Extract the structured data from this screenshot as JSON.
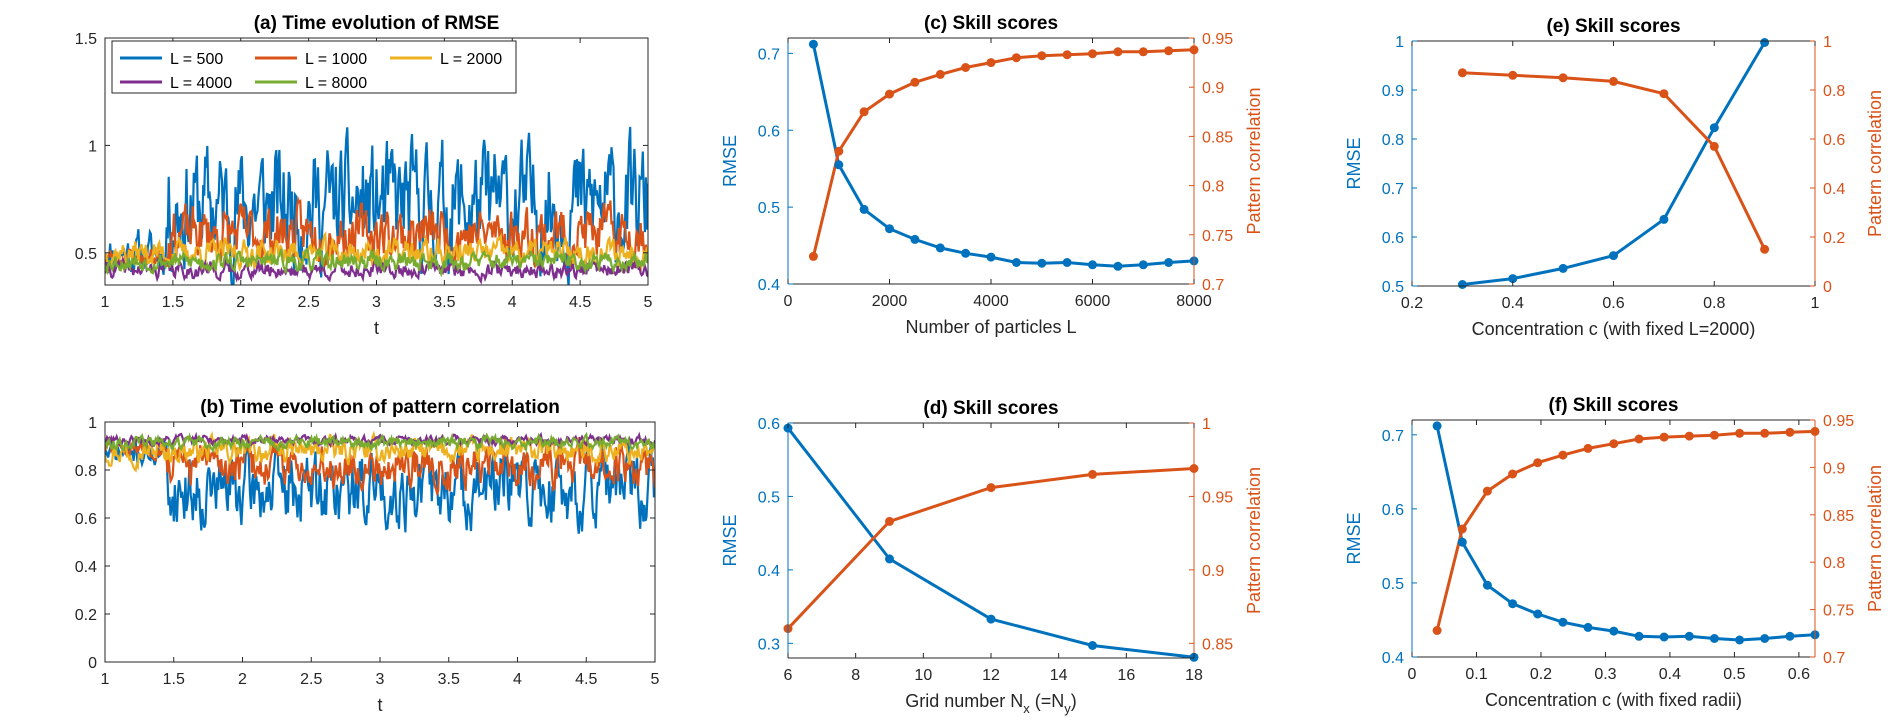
{
  "figure": {
    "name": "skill score figure"
  },
  "colors": {
    "blue": "#0072BD",
    "orange": "#D95319",
    "yellow": "#EDB120",
    "purple": "#7E2F8E",
    "green": "#77AC30",
    "axis": "#262626"
  },
  "chart_data": [
    {
      "id": "a",
      "type": "line",
      "title": "(a) Time evolution of RMSE",
      "xlabel": "t",
      "ylabel": "",
      "xlim": [
        1,
        5
      ],
      "ylim": [
        0.35,
        1.5
      ],
      "xticks": [
        1,
        1.5,
        2,
        2.5,
        3,
        3.5,
        4,
        4.5,
        5
      ],
      "xtick_labels": [
        "1",
        "1.5",
        "2",
        "2.5",
        "3",
        "3.5",
        "4",
        "4.5",
        "5"
      ],
      "yticks": [
        0.5,
        1,
        1.5
      ],
      "ytick_labels": [
        "0.5",
        "1",
        "1.5"
      ],
      "legend": {
        "position": "top",
        "entries": [
          {
            "label": "L = 500",
            "color": "#0072BD"
          },
          {
            "label": "L = 1000",
            "color": "#D95319"
          },
          {
            "label": "L = 2000",
            "color": "#EDB120"
          },
          {
            "label": "L = 4000",
            "color": "#7E2F8E"
          },
          {
            "label": "L = 8000",
            "color": "#77AC30"
          }
        ]
      },
      "series": [
        {
          "name": "L = 500",
          "color": "#0072BD",
          "mean": 0.72,
          "amp": 0.22,
          "seed": 11,
          "dip_start": 1.45,
          "mean_early": 0.5
        },
        {
          "name": "L = 1000",
          "color": "#D95319",
          "mean": 0.59,
          "amp": 0.1,
          "seed": 23,
          "dip_start": 1.45,
          "mean_early": 0.48
        },
        {
          "name": "L = 2000",
          "color": "#EDB120",
          "mean": 0.5,
          "amp": 0.05,
          "seed": 37
        },
        {
          "name": "L = 4000",
          "color": "#7E2F8E",
          "mean": 0.42,
          "amp": 0.03,
          "seed": 41
        },
        {
          "name": "L = 8000",
          "color": "#77AC30",
          "mean": 0.46,
          "amp": 0.035,
          "seed": 53
        }
      ]
    },
    {
      "id": "b",
      "type": "line",
      "title": "(b) Time evolution of pattern correlation",
      "xlabel": "t",
      "ylabel": "",
      "xlim": [
        1,
        5
      ],
      "ylim": [
        0,
        1
      ],
      "xticks": [
        1,
        1.5,
        2,
        2.5,
        3,
        3.5,
        4,
        4.5,
        5
      ],
      "xtick_labels": [
        "1",
        "1.5",
        "2",
        "2.5",
        "3",
        "3.5",
        "4",
        "4.5",
        "5"
      ],
      "yticks": [
        0,
        0.2,
        0.4,
        0.6,
        0.8,
        1
      ],
      "ytick_labels": [
        "0",
        "0.2",
        "0.4",
        "0.6",
        "0.8",
        "1"
      ],
      "series": [
        {
          "name": "L = 500",
          "color": "#0072BD",
          "mean": 0.72,
          "amp": 0.12,
          "seed": 71,
          "dip_start": 1.45,
          "mean_early": 0.87
        },
        {
          "name": "L = 1000",
          "color": "#D95319",
          "mean": 0.82,
          "amp": 0.07,
          "seed": 83,
          "dip_start": 1.45,
          "mean_early": 0.89
        },
        {
          "name": "L = 2000",
          "color": "#EDB120",
          "mean": 0.88,
          "amp": 0.04,
          "seed": 97
        },
        {
          "name": "L = 4000",
          "color": "#7E2F8E",
          "mean": 0.925,
          "amp": 0.015,
          "seed": 101
        },
        {
          "name": "L = 8000",
          "color": "#77AC30",
          "mean": 0.915,
          "amp": 0.02,
          "seed": 113
        }
      ]
    },
    {
      "id": "c",
      "type": "line",
      "title": "(c) Skill scores",
      "xlabel": "Number of particles L",
      "ylabel": "RMSE",
      "ylabel_right": "Pattern correlation",
      "xlim": [
        0,
        8000
      ],
      "ylim": [
        0.4,
        0.72
      ],
      "ylim_right": [
        0.7,
        0.95
      ],
      "xticks": [
        0,
        2000,
        4000,
        6000,
        8000
      ],
      "xtick_labels": [
        "0",
        "2000",
        "4000",
        "6000",
        "8000"
      ],
      "yticks": [
        0.4,
        0.5,
        0.6,
        0.7
      ],
      "ytick_labels": [
        "0.4",
        "0.5",
        "0.6",
        "0.7"
      ],
      "yticks_right": [
        0.7,
        0.75,
        0.8,
        0.85,
        0.9,
        0.95
      ],
      "ytick_labels_right": [
        "0.7",
        "0.75",
        "0.8",
        "0.85",
        "0.9",
        "0.95"
      ],
      "x": [
        500,
        1000,
        1500,
        2000,
        2500,
        3000,
        3500,
        4000,
        4500,
        5000,
        5500,
        6000,
        6500,
        7000,
        7500,
        8000
      ],
      "series": [
        {
          "name": "RMSE",
          "axis": "left",
          "color": "#0072BD",
          "values": [
            0.712,
            0.555,
            0.497,
            0.472,
            0.458,
            0.447,
            0.44,
            0.435,
            0.428,
            0.427,
            0.428,
            0.425,
            0.423,
            0.425,
            0.428,
            0.43
          ]
        },
        {
          "name": "Pattern correlation",
          "axis": "right",
          "color": "#D95319",
          "values": [
            0.728,
            0.835,
            0.875,
            0.893,
            0.905,
            0.913,
            0.92,
            0.925,
            0.93,
            0.932,
            0.933,
            0.934,
            0.936,
            0.936,
            0.937,
            0.938
          ]
        }
      ]
    },
    {
      "id": "d",
      "type": "line",
      "title": "(d) Skill scores",
      "xlabel": "Grid number N",
      "xlabel_sub": "x",
      "xlabel_mid": " (=N",
      "xlabel_sub2": "y",
      "xlabel_end": ")",
      "ylabel": "RMSE",
      "ylabel_right": "Pattern correlation",
      "xlim": [
        6,
        18
      ],
      "ylim": [
        0.28,
        0.6
      ],
      "ylim_right": [
        0.84,
        1.0
      ],
      "xticks": [
        6,
        8,
        10,
        12,
        14,
        16,
        18
      ],
      "xtick_labels": [
        "6",
        "8",
        "10",
        "12",
        "14",
        "16",
        "18"
      ],
      "yticks": [
        0.3,
        0.4,
        0.5,
        0.6
      ],
      "ytick_labels": [
        "0.3",
        "0.4",
        "0.5",
        "0.6"
      ],
      "yticks_right": [
        0.85,
        0.9,
        0.95,
        1.0
      ],
      "ytick_labels_right": [
        "0.85",
        "0.9",
        "0.95",
        "1"
      ],
      "x": [
        6,
        9,
        12,
        15,
        18
      ],
      "series": [
        {
          "name": "RMSE",
          "axis": "left",
          "color": "#0072BD",
          "values": [
            0.593,
            0.415,
            0.333,
            0.297,
            0.281
          ]
        },
        {
          "name": "Pattern correlation",
          "axis": "right",
          "color": "#D95319",
          "values": [
            0.86,
            0.933,
            0.956,
            0.965,
            0.969
          ]
        }
      ]
    },
    {
      "id": "e",
      "type": "line",
      "title": "(e) Skill scores",
      "xlabel": "Concentration c (with fixed L=2000)",
      "ylabel": "RMSE",
      "ylabel_right": "Pattern correlation",
      "xlim": [
        0.2,
        1.0
      ],
      "ylim": [
        0.5,
        1.0
      ],
      "ylim_right": [
        0,
        1.0
      ],
      "xticks": [
        0.2,
        0.4,
        0.6,
        0.8,
        1.0
      ],
      "xtick_labels": [
        "0.2",
        "0.4",
        "0.6",
        "0.8",
        "1"
      ],
      "yticks": [
        0.5,
        0.6,
        0.7,
        0.8,
        0.9,
        1.0
      ],
      "ytick_labels": [
        "0.5",
        "0.6",
        "0.7",
        "0.8",
        "0.9",
        "1"
      ],
      "yticks_right": [
        0,
        0.2,
        0.4,
        0.6,
        0.8,
        1.0
      ],
      "ytick_labels_right": [
        "0",
        "0.2",
        "0.4",
        "0.6",
        "0.8",
        "1"
      ],
      "x": [
        0.3,
        0.4,
        0.5,
        0.6,
        0.7,
        0.8,
        0.9
      ],
      "series": [
        {
          "name": "RMSE",
          "axis": "left",
          "color": "#0072BD",
          "values": [
            0.503,
            0.515,
            0.536,
            0.562,
            0.636,
            0.823,
            0.997
          ]
        },
        {
          "name": "Pattern correlation",
          "axis": "right",
          "color": "#D95319",
          "values": [
            0.87,
            0.86,
            0.85,
            0.835,
            0.785,
            0.57,
            0.15
          ]
        }
      ]
    },
    {
      "id": "f",
      "type": "line",
      "title": "(f) Skill scores",
      "xlabel": "Concentration c (with fixed radii)",
      "ylabel": "RMSE",
      "ylabel_right": "Pattern correlation",
      "xlim": [
        0,
        0.625
      ],
      "ylim": [
        0.4,
        0.72
      ],
      "ylim_right": [
        0.7,
        0.95
      ],
      "xticks": [
        0,
        0.1,
        0.2,
        0.3,
        0.4,
        0.5,
        0.6
      ],
      "xtick_labels": [
        "0",
        "0.1",
        "0.2",
        "0.3",
        "0.4",
        "0.5",
        "0.6"
      ],
      "yticks": [
        0.4,
        0.5,
        0.6,
        0.7
      ],
      "ytick_labels": [
        "0.4",
        "0.5",
        "0.6",
        "0.7"
      ],
      "yticks_right": [
        0.7,
        0.75,
        0.8,
        0.85,
        0.9,
        0.95
      ],
      "ytick_labels_right": [
        "0.7",
        "0.75",
        "0.8",
        "0.85",
        "0.9",
        "0.95"
      ],
      "x": [
        0.039,
        0.078,
        0.117,
        0.156,
        0.195,
        0.234,
        0.273,
        0.313,
        0.352,
        0.391,
        0.43,
        0.469,
        0.508,
        0.547,
        0.586,
        0.625
      ],
      "series": [
        {
          "name": "RMSE",
          "axis": "left",
          "color": "#0072BD",
          "values": [
            0.712,
            0.555,
            0.497,
            0.472,
            0.458,
            0.447,
            0.44,
            0.435,
            0.428,
            0.427,
            0.428,
            0.425,
            0.423,
            0.425,
            0.428,
            0.43
          ]
        },
        {
          "name": "Pattern correlation",
          "axis": "right",
          "color": "#D95319",
          "values": [
            0.728,
            0.835,
            0.875,
            0.893,
            0.905,
            0.913,
            0.92,
            0.925,
            0.93,
            0.932,
            0.933,
            0.934,
            0.936,
            0.936,
            0.937,
            0.938
          ]
        }
      ]
    }
  ]
}
